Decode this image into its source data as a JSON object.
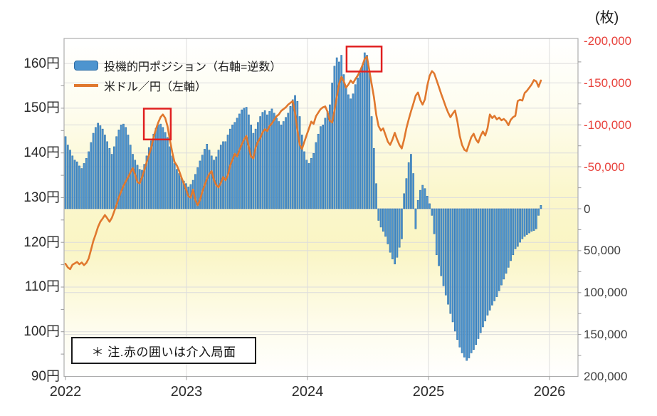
{
  "unit_label": "(枚)",
  "legend": {
    "bars_label": "投機的円ポジション（右軸=逆数）",
    "line_label": "米ドル／円（左軸）"
  },
  "note": {
    "text": "＊ 注.赤の囲いは介入局面"
  },
  "colors": {
    "bar_fill": "#4d94cf",
    "bar_edge": "#2c6ba3",
    "line": "#e0782e",
    "negative_tick_label": "#e8423c",
    "positive_tick_label": "#3f3f3f",
    "axis_text": "#2b2b2b",
    "grid": "#dcdcdc",
    "plot_border": "#adadad",
    "intervention_box": "#e02020",
    "plot_bg_yellow": "#faf5c4"
  },
  "chart_data": {
    "type": "bar+line dual-axis combo, weekly data",
    "x_start": "2022-01",
    "x_frequency": "weekly",
    "x_tick_years": [
      2022,
      2023,
      2024,
      2025,
      2026
    ],
    "left_axis": {
      "unit_suffix": "円",
      "ticks": [
        160,
        150,
        140,
        130,
        120,
        110,
        100,
        90
      ],
      "range": [
        90,
        165.6
      ]
    },
    "right_axis": {
      "unit": "枚",
      "ticks": [
        -200000,
        -150000,
        -100000,
        -50000,
        0,
        50000,
        100000,
        150000,
        200000
      ],
      "range": [
        -200000,
        200000
      ],
      "inverted": true
    },
    "grid": {
      "h_yen_lines": [
        160,
        150,
        140,
        130,
        120,
        110,
        100
      ],
      "h_contract_lines": [
        -150000,
        -100000,
        -50000,
        0,
        50000,
        100000,
        150000
      ],
      "v_year_lines": [
        2023,
        2024,
        2025,
        2026
      ]
    },
    "series": [
      {
        "name": "投機的円ポジション（右軸=逆数）",
        "type": "bar",
        "axis": "right",
        "unit": "thousand contracts (枚, negative = yen short)",
        "values_thousands": [
          -86,
          -76,
          -70,
          -63,
          -58,
          -56,
          -51,
          -48,
          -54,
          -60,
          -68,
          -79,
          -90,
          -97,
          -102,
          -99,
          -95,
          -88,
          -80,
          -72,
          -65,
          -74,
          -86,
          -94,
          -100,
          -101,
          -97,
          -88,
          -76,
          -65,
          -58,
          -52,
          -47,
          -46,
          -53,
          -63,
          -73,
          -81,
          -89,
          -96,
          -100,
          -101,
          -97,
          -91,
          -85,
          -74,
          -63,
          -54,
          -47,
          -42,
          -37,
          -33,
          -30,
          -26,
          -29,
          -34,
          -41,
          -49,
          -57,
          -64,
          -71,
          -77,
          -70,
          -63,
          -58,
          -62,
          -70,
          -76,
          -80,
          -80,
          -88,
          -95,
          -100,
          -103,
          -108,
          -113,
          -118,
          -120,
          -121,
          -112,
          -100,
          -90,
          -95,
          -103,
          -110,
          -115,
          -117,
          -112,
          -116,
          -119,
          -114,
          -108,
          -104,
          -100,
          -104,
          -109,
          -114,
          -122,
          -130,
          -135,
          -128,
          -110,
          -88,
          -68,
          -58,
          -54,
          -60,
          -66,
          -79,
          -89,
          -98,
          -100,
          -108,
          -116,
          -124,
          -150,
          -170,
          -180,
          -175,
          -183,
          -160,
          -145,
          -136,
          -131,
          -137,
          -148,
          -156,
          -162,
          -170,
          -186,
          -183,
          -163,
          -110,
          -72,
          -30,
          14,
          22,
          27,
          33,
          42,
          52,
          60,
          66,
          58,
          46,
          36,
          -18,
          -36,
          -55,
          -65,
          -42,
          24,
          -10,
          -22,
          -28,
          -24,
          -15,
          -6,
          8,
          30,
          55,
          68,
          80,
          92,
          103,
          114,
          125,
          135,
          146,
          156,
          165,
          172,
          177,
          181,
          178,
          172,
          168,
          162,
          155,
          148,
          141,
          134,
          127,
          121,
          115,
          110,
          105,
          98,
          91,
          84,
          77,
          70,
          62,
          55,
          48,
          45,
          40,
          36,
          33,
          31,
          29,
          27,
          26,
          24,
          8,
          -4
        ]
      },
      {
        "name": "米ドル／円（左軸）",
        "type": "line",
        "axis": "left",
        "unit": "円",
        "values_yen": [
          115.2,
          114.4,
          114.0,
          115.0,
          115.3,
          115.6,
          115.1,
          115.5,
          114.9,
          115.4,
          116.4,
          118.3,
          120.3,
          121.8,
          123.4,
          124.6,
          125.3,
          126.1,
          125.4,
          124.6,
          125.5,
          126.9,
          128.4,
          130.0,
          131.4,
          132.6,
          133.6,
          134.6,
          135.6,
          136.6,
          135.2,
          133.5,
          133.2,
          134.5,
          136.2,
          137.9,
          139.5,
          141.2,
          143.5,
          145.3,
          146.8,
          148.0,
          148.6,
          147.8,
          146.0,
          143.0,
          140.2,
          138.0,
          137.2,
          136.0,
          134.5,
          133.2,
          131.8,
          130.3,
          130.0,
          131.8,
          129.5,
          128.3,
          129.5,
          131.3,
          132.8,
          134.2,
          135.3,
          135.9,
          134.0,
          132.8,
          132.3,
          133.3,
          134.6,
          133.9,
          135.0,
          137.2,
          138.5,
          139.8,
          139.2,
          140.6,
          141.9,
          143.0,
          143.8,
          141.5,
          139.2,
          138.8,
          141.2,
          142.5,
          143.4,
          144.6,
          145.3,
          144.9,
          146.0,
          146.6,
          147.4,
          148.2,
          148.6,
          149.4,
          149.8,
          150.2,
          150.8,
          151.2,
          151.6,
          149.0,
          145.0,
          141.8,
          140.9,
          142.5,
          144.0,
          145.5,
          147.0,
          146.5,
          148.2,
          149.0,
          149.8,
          150.2,
          150.4,
          149.2,
          147.2,
          146.8,
          149.5,
          152.5,
          155.5,
          157.0,
          156.0,
          154.6,
          155.3,
          156.2,
          155.6,
          156.5,
          157.3,
          158.3,
          159.5,
          161.0,
          161.5,
          158.5,
          155.5,
          152.5,
          148.5,
          146.0,
          145.0,
          145.5,
          144.0,
          142.5,
          141.8,
          143.0,
          144.5,
          143.0,
          141.8,
          141.0,
          143.0,
          145.5,
          147.5,
          149.3,
          151.0,
          152.8,
          153.5,
          151.8,
          150.8,
          152.0,
          155.0,
          157.2,
          158.3,
          157.8,
          156.3,
          154.8,
          153.2,
          151.8,
          150.3,
          149.0,
          148.0,
          148.8,
          149.5,
          147.0,
          143.8,
          141.8,
          140.7,
          140.4,
          142.0,
          143.5,
          144.3,
          143.0,
          142.3,
          143.8,
          144.8,
          143.9,
          145.5,
          148.6,
          147.8,
          148.3,
          147.5,
          147.9,
          147.3,
          147.6,
          147.1,
          146.2,
          147.4,
          148.0,
          148.3,
          151.6,
          151.9,
          151.7,
          153.4,
          153.9,
          154.6,
          155.3,
          156.3,
          156.0,
          154.8,
          156.2
        ]
      }
    ],
    "intervention_boxes": [
      {
        "weeks": [
          33.8,
          45.4
        ],
        "yen_range": [
          143.0,
          149.9
        ]
      },
      {
        "weeks": [
          121.2,
          136.3
        ],
        "yen_range": [
          158.2,
          163.8
        ]
      }
    ]
  }
}
